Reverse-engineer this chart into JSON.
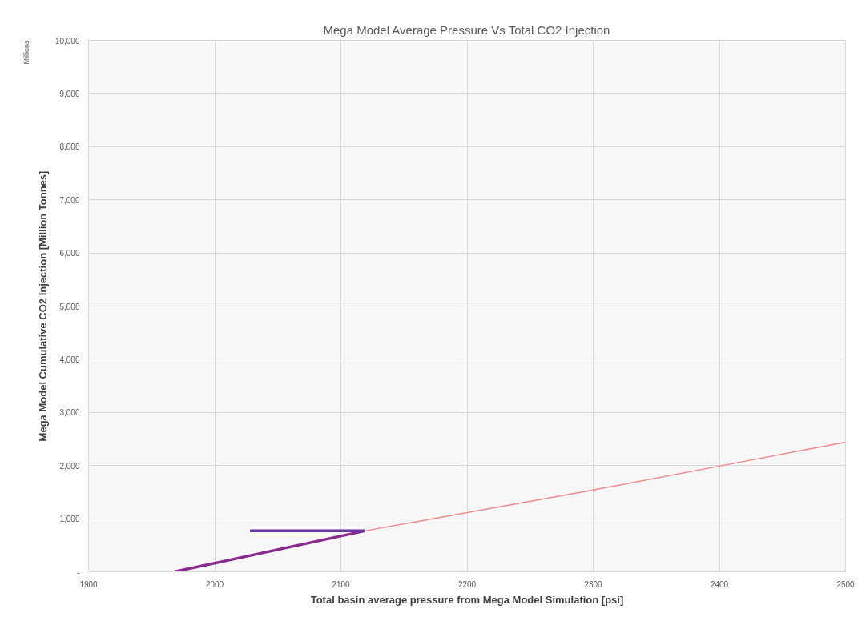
{
  "chart_data": {
    "type": "line",
    "title": "Mega Model Average Pressure Vs Total CO2 Injection",
    "xlabel": "Total basin average pressure from Mega Model Simulation [psi]",
    "ylabel": "Mega Model Cumulative CO2 Injection [Million Tonnes]",
    "annotations": [
      "Millions"
    ],
    "series": [
      {
        "color": "#8b2a8e",
        "x": [
          1968,
          2119
        ],
        "values": [
          0,
          770
        ]
      },
      {
        "color": "#6a35a8",
        "x": [
          2028,
          2119
        ],
        "values": [
          770,
          770
        ]
      },
      {
        "color": "#f08a8a",
        "x": [
          2119,
          2300,
          2400,
          2500
        ],
        "values": [
          770,
          1540,
          1990,
          2440
        ]
      }
    ],
    "xlim": [
      1900,
      2500
    ],
    "xticks": [
      1900,
      2000,
      2100,
      2200,
      2300,
      2400,
      2500
    ],
    "ylim": [
      0,
      10000
    ],
    "yticks": [
      {
        "value": 0,
        "label": "-"
      },
      {
        "value": 1000,
        "label": "1,000"
      },
      {
        "value": 2000,
        "label": "2,000"
      },
      {
        "value": 3000,
        "label": "3,000"
      },
      {
        "value": 4000,
        "label": "4,000"
      },
      {
        "value": 5000,
        "label": "5,000"
      },
      {
        "value": 6000,
        "label": "6,000"
      },
      {
        "value": 7000,
        "label": "7,000"
      },
      {
        "value": 8000,
        "label": "8,000"
      },
      {
        "value": 9000,
        "label": "9,000"
      },
      {
        "value": 10000,
        "label": "10,000"
      }
    ],
    "grid": true,
    "marker": "none",
    "line_style": "solid"
  }
}
